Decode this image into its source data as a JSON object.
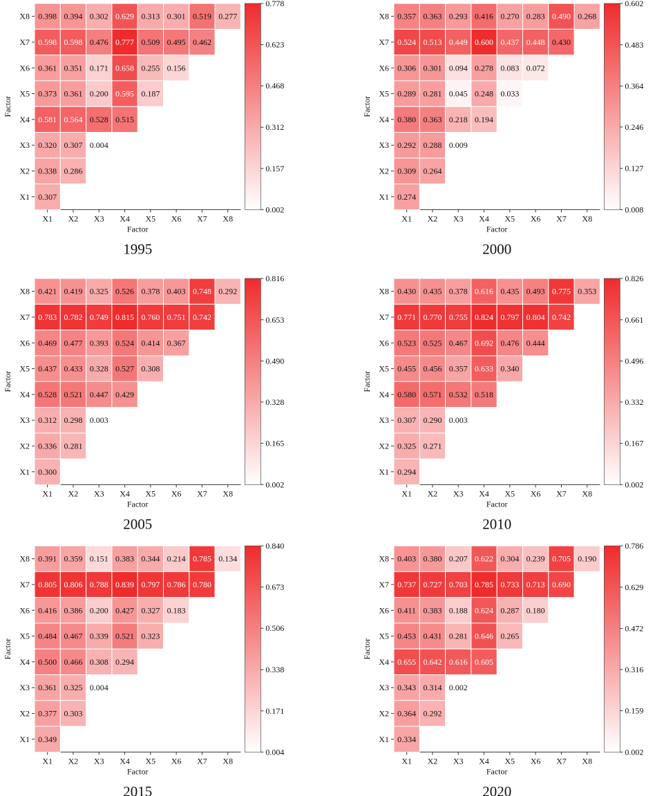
{
  "figure": {
    "panel_captions": [
      "1995",
      "2000",
      "2005",
      "2010",
      "2015",
      "2020"
    ]
  },
  "colors": {
    "low": "#ffffff",
    "high": "#ef2b2c",
    "cell_border": "#ffffff",
    "axis": "#333333",
    "text_dark": "#111111",
    "text_light": "#ffffff"
  },
  "chart_data": [
    {
      "type": "heatmap",
      "title": "1995",
      "xlabel": "Factor",
      "ylabel": "Factor",
      "x_categories": [
        "X1",
        "X2",
        "X3",
        "X4",
        "X5",
        "X6",
        "X7",
        "X8"
      ],
      "y_categories_top_to_bottom": [
        "X8",
        "X7",
        "X6",
        "X5",
        "X4",
        "X3",
        "X2",
        "X1"
      ],
      "rows_top_to_bottom": [
        [
          "0.398",
          "0.394",
          "0.302",
          "0.629",
          "0.313",
          "0.301",
          "0.519",
          "0.277"
        ],
        [
          "0.598",
          "0.598",
          "0.476",
          "0.777",
          "0.509",
          "0.495",
          "0.462"
        ],
        [
          "0.361",
          "0.351",
          "0.171",
          "0.658",
          "0.255",
          "0.156"
        ],
        [
          "0.373",
          "0.361",
          "0.200",
          "0.595",
          "0.187"
        ],
        [
          "0.581",
          "0.564",
          "0.528",
          "0.515"
        ],
        [
          "0.320",
          "0.307",
          "0.004"
        ],
        [
          "0.338",
          "0.286"
        ],
        [
          "0.307"
        ]
      ],
      "colorbar_ticks": [
        "0.778",
        "0.623",
        "0.468",
        "0.312",
        "0.157",
        "0.002"
      ],
      "colorbar_range": [
        0.002,
        0.778
      ]
    },
    {
      "type": "heatmap",
      "title": "2000",
      "xlabel": "Factor",
      "ylabel": "Factor",
      "x_categories": [
        "X1",
        "X2",
        "X3",
        "X4",
        "X5",
        "X6",
        "X7",
        "X8"
      ],
      "y_categories_top_to_bottom": [
        "X8",
        "X7",
        "X6",
        "X5",
        "X4",
        "X3",
        "X2",
        "X1"
      ],
      "rows_top_to_bottom": [
        [
          "0.357",
          "0.363",
          "0.293",
          "0.416",
          "0.270",
          "0.283",
          "0.490",
          "0.268"
        ],
        [
          "0.524",
          "0.513",
          "0.449",
          "0.600",
          "0.437",
          "0.448",
          "0.430"
        ],
        [
          "0.306",
          "0.301",
          "0.094",
          "0.278",
          "0.083",
          "0.072"
        ],
        [
          "0.289",
          "0.281",
          "0.045",
          "0.248",
          "0.033"
        ],
        [
          "0.380",
          "0.363",
          "0.218",
          "0.194"
        ],
        [
          "0.292",
          "0.288",
          "0.009"
        ],
        [
          "0.309",
          "0.264"
        ],
        [
          "0.274"
        ]
      ],
      "colorbar_ticks": [
        "0.602",
        "0.483",
        "0.364",
        "0.246",
        "0.127",
        "0.008"
      ],
      "colorbar_range": [
        0.008,
        0.602
      ]
    },
    {
      "type": "heatmap",
      "title": "2005",
      "xlabel": "Factor",
      "ylabel": "Factor",
      "x_categories": [
        "X1",
        "X2",
        "X3",
        "X4",
        "X5",
        "X6",
        "X7",
        "X8"
      ],
      "y_categories_top_to_bottom": [
        "X8",
        "X7",
        "X6",
        "X5",
        "X4",
        "X3",
        "X2",
        "X1"
      ],
      "rows_top_to_bottom": [
        [
          "0.421",
          "0.419",
          "0.325",
          "0.526",
          "0.378",
          "0.403",
          "0.748",
          "0.292"
        ],
        [
          "0.783",
          "0.782",
          "0.749",
          "0.815",
          "0.760",
          "0.751",
          "0.742"
        ],
        [
          "0.469",
          "0.477",
          "0.393",
          "0.524",
          "0.414",
          "0.367"
        ],
        [
          "0.437",
          "0.433",
          "0.328",
          "0.527",
          "0.308"
        ],
        [
          "0.528",
          "0.521",
          "0.447",
          "0.429"
        ],
        [
          "0.312",
          "0.298",
          "0.003"
        ],
        [
          "0.336",
          "0.281"
        ],
        [
          "0.300"
        ]
      ],
      "colorbar_ticks": [
        "0.816",
        "0.653",
        "0.490",
        "0.328",
        "0.165",
        "0.002"
      ],
      "colorbar_range": [
        0.002,
        0.816
      ]
    },
    {
      "type": "heatmap",
      "title": "2010",
      "xlabel": "Factor",
      "ylabel": "Factor",
      "x_categories": [
        "X1",
        "X2",
        "X3",
        "X4",
        "X5",
        "X6",
        "X7",
        "X8"
      ],
      "y_categories_top_to_bottom": [
        "X8",
        "X7",
        "X6",
        "X5",
        "X4",
        "X3",
        "X2",
        "X1"
      ],
      "rows_top_to_bottom": [
        [
          "0.430",
          "0.435",
          "0.378",
          "0.616",
          "0.435",
          "0.493",
          "0.775",
          "0.353"
        ],
        [
          "0.771",
          "0.770",
          "0.755",
          "0.824",
          "0.797",
          "0.804",
          "0.742"
        ],
        [
          "0.523",
          "0.525",
          "0.467",
          "0.692",
          "0.476",
          "0.444"
        ],
        [
          "0.455",
          "0.456",
          "0.357",
          "0.633",
          "0.340"
        ],
        [
          "0.580",
          "0.571",
          "0.532",
          "0.518"
        ],
        [
          "0.307",
          "0.290",
          "0.003"
        ],
        [
          "0.325",
          "0.271"
        ],
        [
          "0.294"
        ]
      ],
      "colorbar_ticks": [
        "0.826",
        "0.661",
        "0.496",
        "0.332",
        "0.167",
        "0.002"
      ],
      "colorbar_range": [
        0.002,
        0.826
      ]
    },
    {
      "type": "heatmap",
      "title": "2015",
      "xlabel": "Factor",
      "ylabel": "Factor",
      "x_categories": [
        "X1",
        "X2",
        "X3",
        "X4",
        "X5",
        "X6",
        "X7",
        "X8"
      ],
      "y_categories_top_to_bottom": [
        "X8",
        "X7",
        "X6",
        "X5",
        "X4",
        "X3",
        "X2",
        "X1"
      ],
      "rows_top_to_bottom": [
        [
          "0.391",
          "0.359",
          "0.151",
          "0.383",
          "0.344",
          "0.214",
          "0.785",
          "0.134"
        ],
        [
          "0.805",
          "0.806",
          "0.788",
          "0.839",
          "0.797",
          "0.786",
          "0.780"
        ],
        [
          "0.416",
          "0.386",
          "0.200",
          "0.427",
          "0.327",
          "0.183"
        ],
        [
          "0.484",
          "0.467",
          "0.339",
          "0.521",
          "0.323"
        ],
        [
          "0.500",
          "0.466",
          "0.308",
          "0.294"
        ],
        [
          "0.361",
          "0.325",
          "0.004"
        ],
        [
          "0.377",
          "0.303"
        ],
        [
          "0.349"
        ]
      ],
      "colorbar_ticks": [
        "0.840",
        "0.673",
        "0.506",
        "0.338",
        "0.171",
        "0.004"
      ],
      "colorbar_range": [
        0.004,
        0.84
      ]
    },
    {
      "type": "heatmap",
      "title": "2020",
      "xlabel": "Factor",
      "ylabel": "Factor",
      "x_categories": [
        "X1",
        "X2",
        "X3",
        "X4",
        "X5",
        "X6",
        "X7",
        "X8"
      ],
      "y_categories_top_to_bottom": [
        "X8",
        "X7",
        "X6",
        "X5",
        "X4",
        "X3",
        "X2",
        "X1"
      ],
      "rows_top_to_bottom": [
        [
          "0.403",
          "0.380",
          "0.207",
          "0.622",
          "0.304",
          "0.239",
          "0.705",
          "0.190"
        ],
        [
          "0.737",
          "0.727",
          "0.703",
          "0.785",
          "0.733",
          "0.713",
          "0.690"
        ],
        [
          "0.411",
          "0.383",
          "0.188",
          "0.624",
          "0.287",
          "0.180"
        ],
        [
          "0.453",
          "0.431",
          "0.281",
          "0.646",
          "0.265"
        ],
        [
          "0.655",
          "0.642",
          "0.616",
          "0.605"
        ],
        [
          "0.343",
          "0.314",
          "0.002"
        ],
        [
          "0.364",
          "0.292"
        ],
        [
          "0.334"
        ]
      ],
      "colorbar_ticks": [
        "0.786",
        "0.629",
        "0.472",
        "0.316",
        "0.159",
        "0.002"
      ],
      "colorbar_range": [
        0.002,
        0.786
      ]
    }
  ]
}
